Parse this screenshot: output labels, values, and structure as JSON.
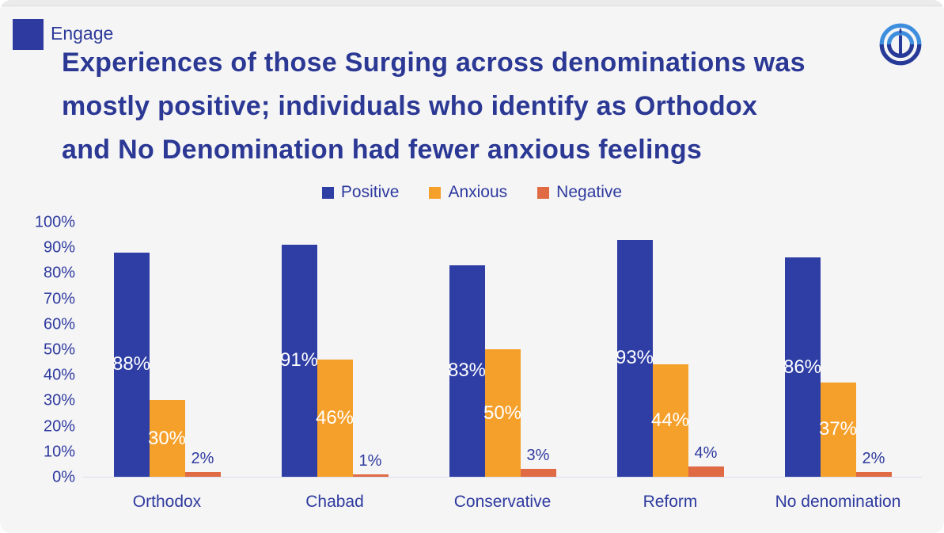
{
  "header": {
    "brand": "Engage",
    "logo_icon": "menorah-circle-logo"
  },
  "title": {
    "lines": [
      "Experiences of those Surging across denominations was",
      "mostly positive; individuals who identify as Orthodox",
      "and No Denomination had fewer anxious feelings"
    ]
  },
  "chart_data": {
    "type": "bar",
    "title": "",
    "categories": [
      "Orthodox",
      "Chabad",
      "Conservative",
      "Reform",
      "No denomination"
    ],
    "series": [
      {
        "name": "Positive",
        "color": "#2E3EA4",
        "values": [
          88,
          91,
          83,
          93,
          86
        ]
      },
      {
        "name": "Anxious",
        "color": "#F5A02B",
        "values": [
          30,
          46,
          50,
          44,
          37
        ]
      },
      {
        "name": "Negative",
        "color": "#DF6A44",
        "values": [
          2,
          1,
          3,
          4,
          2
        ]
      }
    ],
    "value_suffix": "%",
    "ylim": [
      0,
      100
    ],
    "y_ticks": [
      "0%",
      "10%",
      "20%",
      "30%",
      "40%",
      "50%",
      "60%",
      "70%",
      "80%",
      "90%",
      "100%"
    ],
    "legend_position": "top",
    "grid": false,
    "data_labels": {
      "inside_color": "#ffffff",
      "outside_color": "#2E3A9E",
      "outside_threshold": 10
    }
  },
  "colors": {
    "background": "#f5f5f6",
    "accent_blue": "#2E3AA0",
    "title_text": "#2B3894",
    "axis_text": "#2E3A9E",
    "logo_light_blue": "#3E8EDE",
    "logo_dark_blue": "#283A97"
  }
}
